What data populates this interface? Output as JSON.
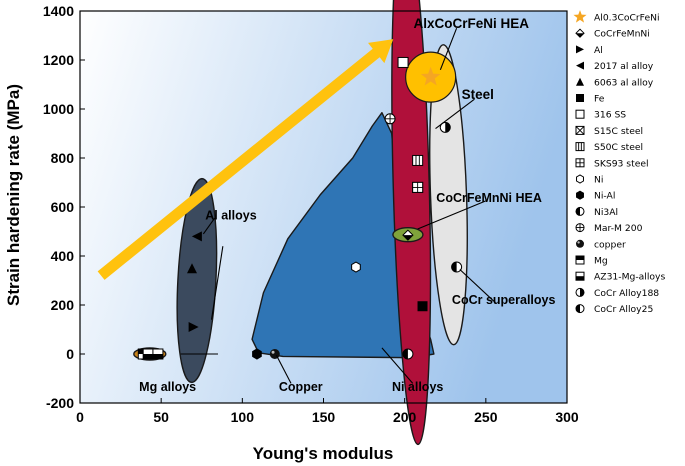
{
  "colors": {
    "plot_bg_left": "#ffffff",
    "plot_bg_right": "#9fc4ec",
    "arrow": "#ffc20e",
    "star": "#f5a623",
    "ni_region": "#2f75b5",
    "steel_region": "#b0103a",
    "cocr_region": "#e4e4e4",
    "al_region": "#3b4a5e",
    "hea_region": "#7fa33b",
    "mg_region": "#c9831a",
    "alx_circle": "#ffc000"
  },
  "chart_data": {
    "type": "scatter",
    "xlabel": "Young's modulus",
    "ylabel": "Strain hardening rate (MPa)",
    "xlim": [
      0,
      300
    ],
    "ylim": [
      -200,
      1400
    ],
    "xticks": [
      0,
      50,
      100,
      150,
      200,
      250,
      300
    ],
    "yticks": [
      -200,
      0,
      200,
      400,
      600,
      800,
      1000,
      1200,
      1400
    ],
    "grid": false,
    "legend_position": "right outside",
    "series": [
      {
        "name": "Al0.3CoCrFeNi",
        "marker": "star",
        "points": [
          [
            216,
            1130
          ]
        ]
      },
      {
        "name": "CoCrFeMnNi",
        "marker": "diamond-half",
        "points": [
          [
            202,
            485
          ]
        ]
      },
      {
        "name": "Al",
        "marker": "triangle-right",
        "points": [
          [
            70,
            110
          ]
        ]
      },
      {
        "name": "2017 al alloy",
        "marker": "triangle-left",
        "points": [
          [
            72,
            480
          ]
        ]
      },
      {
        "name": "6063 al alloy",
        "marker": "triangle-up",
        "points": [
          [
            69,
            350
          ]
        ]
      },
      {
        "name": "Fe",
        "marker": "square",
        "points": [
          [
            211,
            195
          ]
        ]
      },
      {
        "name": "316 SS",
        "marker": "square-open",
        "points": [
          [
            199,
            1190
          ]
        ]
      },
      {
        "name": "S15C steel",
        "marker": "square-x",
        "points": [
          [
            208,
            680
          ]
        ]
      },
      {
        "name": "S50C steel",
        "marker": "square-bars",
        "points": [
          [
            208,
            790
          ]
        ]
      },
      {
        "name": "SKS93 steel",
        "marker": "square-cross",
        "points": [
          [
            208,
            680
          ]
        ]
      },
      {
        "name": "Ni",
        "marker": "hexagon-open",
        "points": [
          [
            170,
            355
          ]
        ]
      },
      {
        "name": "Ni-Al",
        "marker": "hexagon",
        "points": [
          [
            109,
            0
          ]
        ]
      },
      {
        "name": "Ni3Al",
        "marker": "circle-half",
        "points": [
          [
            202,
            0
          ]
        ]
      },
      {
        "name": "Mar-M 200",
        "marker": "circle-cross",
        "points": [
          [
            191,
            960
          ]
        ]
      },
      {
        "name": "copper",
        "marker": "sphere",
        "points": [
          [
            120,
            0
          ]
        ]
      },
      {
        "name": "Mg",
        "marker": "square-half",
        "points": [
          [
            39,
            0
          ],
          [
            45,
            0
          ]
        ]
      },
      {
        "name": "AZ31-Mg-alloys",
        "marker": "square-half-bottom",
        "points": [
          [
            42,
            0
          ],
          [
            48,
            0
          ]
        ]
      },
      {
        "name": "CoCr Alloy188",
        "marker": "circle-half-dark",
        "points": [
          [
            225,
            925
          ]
        ]
      },
      {
        "name": "CoCr Alloy25",
        "marker": "circle-half-left",
        "points": [
          [
            232,
            355
          ]
        ]
      }
    ],
    "annotations": [
      {
        "text": "AlxCoCrFeNi HEA",
        "x": 241,
        "y": 1330
      },
      {
        "text": "Steel",
        "x": 245,
        "y": 1040
      },
      {
        "text": "CoCrFeMnNi HEA",
        "x": 252,
        "y": 620
      },
      {
        "text": "Al alloys",
        "x": 93,
        "y": 550
      },
      {
        "text": "CoCr superalloys",
        "x": 261,
        "y": 205
      },
      {
        "text": "Mg alloys",
        "x": 54,
        "y": -150
      },
      {
        "text": "Copper",
        "x": 136,
        "y": -150
      },
      {
        "text": "Ni alloys",
        "x": 208,
        "y": -150
      }
    ]
  }
}
